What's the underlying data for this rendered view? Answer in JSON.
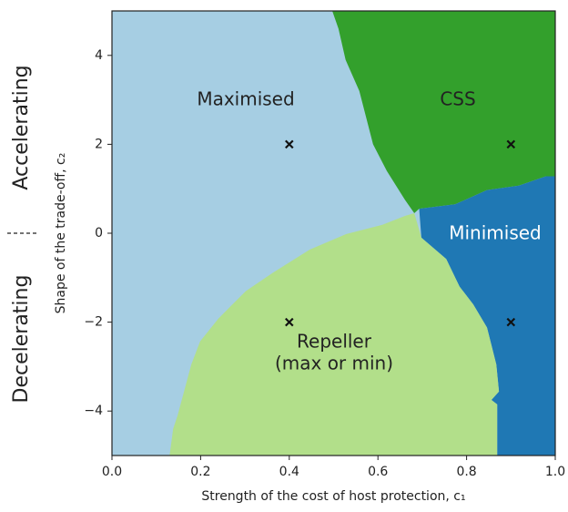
{
  "chart_data": {
    "type": "region",
    "xlabel": "Strength of the cost of host protection, c₁",
    "ylabel": "Shape of the trade-off, c₂",
    "side_labels": [
      "Accelerating",
      "Decelerating"
    ],
    "xlim": [
      0,
      1
    ],
    "ylim": [
      -5,
      5
    ],
    "xticks": [
      {
        "value": 0,
        "label": "0.0"
      },
      0.2,
      0.4,
      0.6,
      0.8,
      {
        "value": 1,
        "label": "1.0"
      }
    ],
    "yticks": [
      {
        "value": -4,
        "label": "−4"
      },
      {
        "value": -2,
        "label": "−2"
      },
      0,
      2,
      4
    ],
    "regions": [
      {
        "name": [
          "Maximised"
        ],
        "color": "#a6cee3",
        "text_color": "#222222",
        "x": [
          0,
          1,
          1,
          0
        ],
        "y": [
          -5,
          -5,
          5,
          5
        ]
      },
      {
        "name": [
          "CSS"
        ],
        "color": "#33a02c",
        "text_color": "#222222",
        "x": [
          0.497,
          0.511,
          0.527,
          0.558,
          0.589,
          0.62,
          0.661,
          0.682,
          0.693,
          0.774,
          0.846,
          0.918,
          0.979,
          1,
          1
        ],
        "y": [
          5,
          4.6,
          3.9,
          3.2,
          2.0,
          1.4,
          0.75,
          0.45,
          0.55,
          0.65,
          0.97,
          1.07,
          1.28,
          1.28,
          5
        ]
      },
      {
        "name": [
          "Minimised"
        ],
        "color": "#1f78b4",
        "text_color": "#ffffff",
        "x": [
          0.693,
          0.698,
          0.754,
          0.784,
          0.815,
          0.846,
          0.867,
          0.873,
          0.856,
          0.869,
          0.869,
          1,
          1,
          0.979,
          0.918,
          0.846,
          0.774
        ],
        "y": [
          0.55,
          -0.1,
          -0.58,
          -1.2,
          -1.6,
          -2.12,
          -2.95,
          -3.56,
          -3.75,
          -3.85,
          -5,
          -5,
          1.28,
          1.28,
          1.07,
          0.97,
          0.65
        ]
      },
      {
        "name": [
          "Repeller",
          "(max or min)"
        ],
        "color": "#b2df8a",
        "text_color": "#222222",
        "x": [
          0.13,
          0.138,
          0.148,
          0.179,
          0.199,
          0.24,
          0.302,
          0.363,
          0.446,
          0.528,
          0.61,
          0.661,
          0.682,
          0.698,
          0.754,
          0.784,
          0.815,
          0.846,
          0.867,
          0.873,
          0.856,
          0.869,
          0.869
        ],
        "y": [
          -5,
          -4.4,
          -4.1,
          -2.95,
          -2.43,
          -1.92,
          -1.3,
          -0.89,
          -0.37,
          -0.02,
          0.19,
          0.39,
          0.45,
          -0.1,
          -0.58,
          -1.2,
          -1.6,
          -2.12,
          -2.95,
          -3.56,
          -3.75,
          -3.85,
          -5
        ]
      }
    ],
    "points": {
      "x": [
        0.4,
        0.9,
        0.4,
        0.9
      ],
      "y": [
        2,
        2,
        -2,
        -2
      ]
    }
  }
}
